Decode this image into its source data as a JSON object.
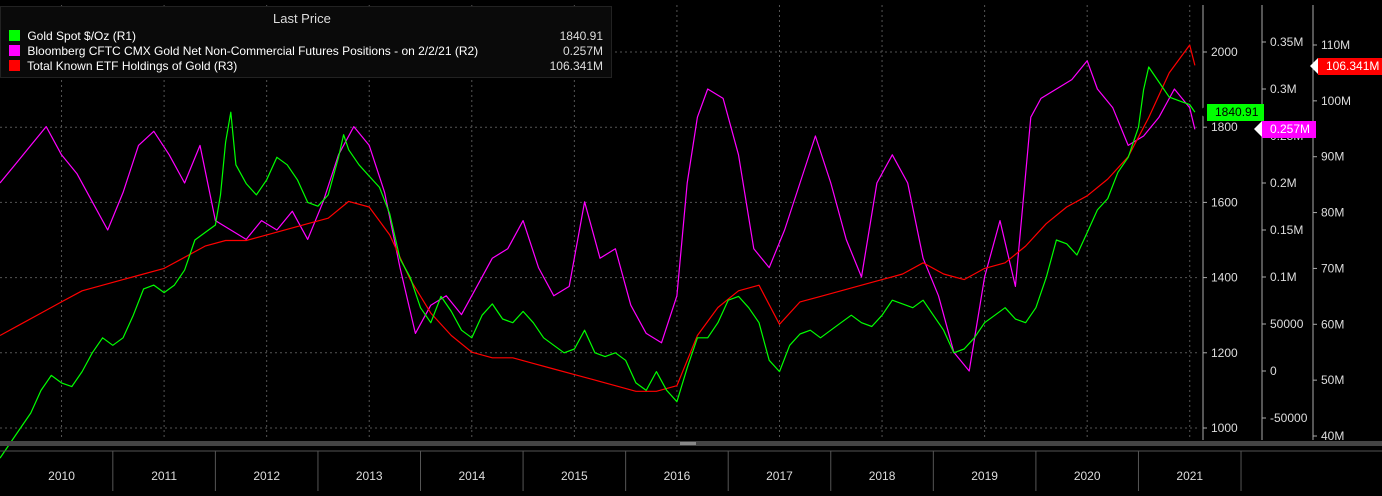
{
  "legend": {
    "header": "Last Price",
    "items": [
      {
        "label": "Gold Spot  $/Oz  (R1)",
        "value": "1840.91",
        "color": "#00ff00"
      },
      {
        "label": "Bloomberg CFTC CMX Gold Net Non-Commercial Futures Positions -  on 2/2/21  (R2)",
        "value": "0.257M",
        "color": "#ff00ff"
      },
      {
        "label": "Total Known ETF Holdings of Gold  (R3)",
        "value": "106.341M",
        "color": "#ff0000"
      }
    ]
  },
  "last_value_tags": {
    "gold": {
      "text": "1840.91",
      "bg": "#00ff00"
    },
    "cftc": {
      "text": "0.257M",
      "bg": "#ff00ff"
    },
    "etf": {
      "text": "106.341M",
      "bg": "#ff0000"
    }
  },
  "chart_data": {
    "type": "line",
    "title": "",
    "x_axis": {
      "range": [
        2009.4,
        2021.1
      ],
      "tick_labels": [
        "2010",
        "2011",
        "2012",
        "2013",
        "2014",
        "2015",
        "2016",
        "2017",
        "2018",
        "2019",
        "2020",
        "2021"
      ]
    },
    "axes": {
      "R1": {
        "range": [
          950,
          2120
        ],
        "ticks": [
          1000,
          1200,
          1400,
          1600,
          1800,
          2000
        ],
        "tick_labels": [
          "1000",
          "1200",
          "1400",
          "1600",
          "1800",
          "2000"
        ]
      },
      "R2": {
        "range": [
          -70000,
          0.385
        ],
        "ticks": [
          -50000,
          0,
          50000,
          100000,
          150000,
          200000,
          250000,
          300000,
          350000
        ],
        "tick_labels": [
          "-50000",
          "0",
          "50000",
          "0.1M",
          "0.15M",
          "0.2M",
          "0.25M",
          "0.3M",
          "0.35M"
        ]
      },
      "R3": {
        "range": [
          39,
          117
        ],
        "ticks": [
          40,
          50,
          60,
          70,
          80,
          90,
          100,
          110
        ],
        "tick_labels": [
          "40M",
          "50M",
          "60M",
          "70M",
          "80M",
          "90M",
          "100M",
          "110M"
        ]
      }
    },
    "series": [
      {
        "name": "Gold Spot  $/Oz  (R1)",
        "axis": "R1",
        "color": "#00ff00",
        "x": [
          2009.4,
          2009.5,
          2009.6,
          2009.7,
          2009.8,
          2009.9,
          2010.0,
          2010.1,
          2010.2,
          2010.3,
          2010.4,
          2010.5,
          2010.6,
          2010.7,
          2010.8,
          2010.9,
          2011.0,
          2011.1,
          2011.2,
          2011.3,
          2011.4,
          2011.5,
          2011.55,
          2011.6,
          2011.65,
          2011.7,
          2011.8,
          2011.9,
          2012.0,
          2012.1,
          2012.2,
          2012.3,
          2012.4,
          2012.5,
          2012.6,
          2012.7,
          2012.75,
          2012.8,
          2012.9,
          2013.0,
          2013.1,
          2013.2,
          2013.3,
          2013.4,
          2013.5,
          2013.6,
          2013.7,
          2013.8,
          2013.9,
          2014.0,
          2014.1,
          2014.2,
          2014.3,
          2014.4,
          2014.5,
          2014.6,
          2014.7,
          2014.8,
          2014.9,
          2015.0,
          2015.1,
          2015.2,
          2015.3,
          2015.4,
          2015.5,
          2015.6,
          2015.7,
          2015.8,
          2015.9,
          2016.0,
          2016.1,
          2016.2,
          2016.3,
          2016.4,
          2016.5,
          2016.6,
          2016.7,
          2016.8,
          2016.9,
          2017.0,
          2017.1,
          2017.2,
          2017.3,
          2017.4,
          2017.5,
          2017.6,
          2017.7,
          2017.8,
          2017.9,
          2018.0,
          2018.1,
          2018.2,
          2018.3,
          2018.4,
          2018.5,
          2018.6,
          2018.7,
          2018.8,
          2018.9,
          2019.0,
          2019.1,
          2019.2,
          2019.3,
          2019.4,
          2019.5,
          2019.6,
          2019.7,
          2019.8,
          2019.9,
          2020.0,
          2020.1,
          2020.2,
          2020.3,
          2020.4,
          2020.5,
          2020.55,
          2020.6,
          2020.7,
          2020.8,
          2020.9,
          2021.0,
          2021.05
        ],
        "y": [
          920,
          960,
          1000,
          1040,
          1100,
          1140,
          1120,
          1110,
          1150,
          1200,
          1240,
          1220,
          1240,
          1300,
          1370,
          1380,
          1360,
          1380,
          1420,
          1500,
          1520,
          1540,
          1620,
          1760,
          1840,
          1700,
          1650,
          1620,
          1660,
          1720,
          1700,
          1660,
          1600,
          1590,
          1620,
          1720,
          1780,
          1740,
          1700,
          1670,
          1640,
          1570,
          1450,
          1400,
          1320,
          1280,
          1350,
          1310,
          1260,
          1240,
          1300,
          1330,
          1290,
          1280,
          1310,
          1280,
          1240,
          1220,
          1200,
          1210,
          1260,
          1200,
          1190,
          1200,
          1180,
          1120,
          1100,
          1150,
          1100,
          1070,
          1160,
          1240,
          1240,
          1280,
          1340,
          1350,
          1320,
          1280,
          1180,
          1150,
          1220,
          1250,
          1260,
          1240,
          1260,
          1280,
          1300,
          1280,
          1270,
          1300,
          1340,
          1330,
          1320,
          1340,
          1300,
          1260,
          1200,
          1210,
          1240,
          1280,
          1300,
          1320,
          1290,
          1280,
          1320,
          1400,
          1500,
          1490,
          1460,
          1520,
          1580,
          1610,
          1680,
          1720,
          1800,
          1900,
          1960,
          1920,
          1880,
          1870,
          1860,
          1840
        ]
      },
      {
        "name": "Bloomberg CFTC CMX Gold Net Non-Commercial Futures Positions -  on 2/2/21  (R2)",
        "axis": "R2",
        "color": "#ff00ff",
        "x": [
          2009.4,
          2009.55,
          2009.7,
          2009.85,
          2010.0,
          2010.15,
          2010.3,
          2010.45,
          2010.6,
          2010.75,
          2010.9,
          2011.05,
          2011.2,
          2011.35,
          2011.5,
          2011.65,
          2011.8,
          2011.95,
          2012.1,
          2012.25,
          2012.4,
          2012.55,
          2012.7,
          2012.85,
          2013.0,
          2013.15,
          2013.3,
          2013.45,
          2013.6,
          2013.75,
          2013.9,
          2014.05,
          2014.2,
          2014.35,
          2014.5,
          2014.65,
          2014.8,
          2014.95,
          2015.1,
          2015.25,
          2015.4,
          2015.55,
          2015.7,
          2015.85,
          2016.0,
          2016.1,
          2016.2,
          2016.3,
          2016.45,
          2016.6,
          2016.75,
          2016.9,
          2017.05,
          2017.2,
          2017.35,
          2017.5,
          2017.65,
          2017.8,
          2017.95,
          2018.1,
          2018.25,
          2018.4,
          2018.55,
          2018.7,
          2018.85,
          2019.0,
          2019.15,
          2019.3,
          2019.45,
          2019.55,
          2019.7,
          2019.85,
          2020.0,
          2020.1,
          2020.25,
          2020.4,
          2020.55,
          2020.7,
          2020.85,
          2021.0,
          2021.05
        ],
        "y": [
          200000,
          220000,
          240000,
          260000,
          230000,
          210000,
          180000,
          150000,
          190000,
          240000,
          255000,
          230000,
          200000,
          240000,
          160000,
          150000,
          140000,
          160000,
          150000,
          170000,
          140000,
          180000,
          230000,
          260000,
          240000,
          190000,
          110000,
          40000,
          70000,
          80000,
          60000,
          90000,
          120000,
          130000,
          160000,
          110000,
          80000,
          90000,
          180000,
          120000,
          130000,
          70000,
          40000,
          30000,
          80000,
          200000,
          270000,
          300000,
          290000,
          230000,
          130000,
          110000,
          150000,
          200000,
          250000,
          200000,
          140000,
          100000,
          200000,
          230000,
          200000,
          120000,
          80000,
          20000,
          0,
          100000,
          160000,
          90000,
          270000,
          290000,
          300000,
          310000,
          330000,
          300000,
          280000,
          240000,
          250000,
          270000,
          300000,
          280000,
          257000
        ]
      },
      {
        "name": "Total Known ETF Holdings of Gold  (R3)",
        "axis": "R3",
        "color": "#ff0000",
        "x": [
          2009.4,
          2009.6,
          2009.8,
          2010.0,
          2010.2,
          2010.4,
          2010.6,
          2010.8,
          2011.0,
          2011.2,
          2011.4,
          2011.6,
          2011.8,
          2012.0,
          2012.2,
          2012.4,
          2012.6,
          2012.8,
          2013.0,
          2013.2,
          2013.4,
          2013.6,
          2013.8,
          2014.0,
          2014.2,
          2014.4,
          2014.6,
          2014.8,
          2015.0,
          2015.2,
          2015.4,
          2015.6,
          2015.8,
          2016.0,
          2016.2,
          2016.4,
          2016.6,
          2016.8,
          2017.0,
          2017.2,
          2017.4,
          2017.6,
          2017.8,
          2018.0,
          2018.2,
          2018.4,
          2018.6,
          2018.8,
          2019.0,
          2019.2,
          2019.4,
          2019.6,
          2019.8,
          2020.0,
          2020.2,
          2020.4,
          2020.6,
          2020.8,
          2021.0,
          2021.05
        ],
        "y": [
          58,
          60,
          62,
          64,
          66,
          67,
          68,
          69,
          70,
          72,
          74,
          75,
          75,
          76,
          77,
          78,
          79,
          82,
          81,
          76,
          68,
          62,
          58,
          55,
          54,
          54,
          53,
          52,
          51,
          50,
          49,
          48,
          48,
          49,
          58,
          63,
          66,
          67,
          60,
          64,
          65,
          66,
          67,
          68,
          69,
          71,
          69,
          68,
          70,
          71,
          74,
          78,
          81,
          83,
          86,
          90,
          97,
          105,
          110,
          106.341
        ]
      }
    ]
  }
}
